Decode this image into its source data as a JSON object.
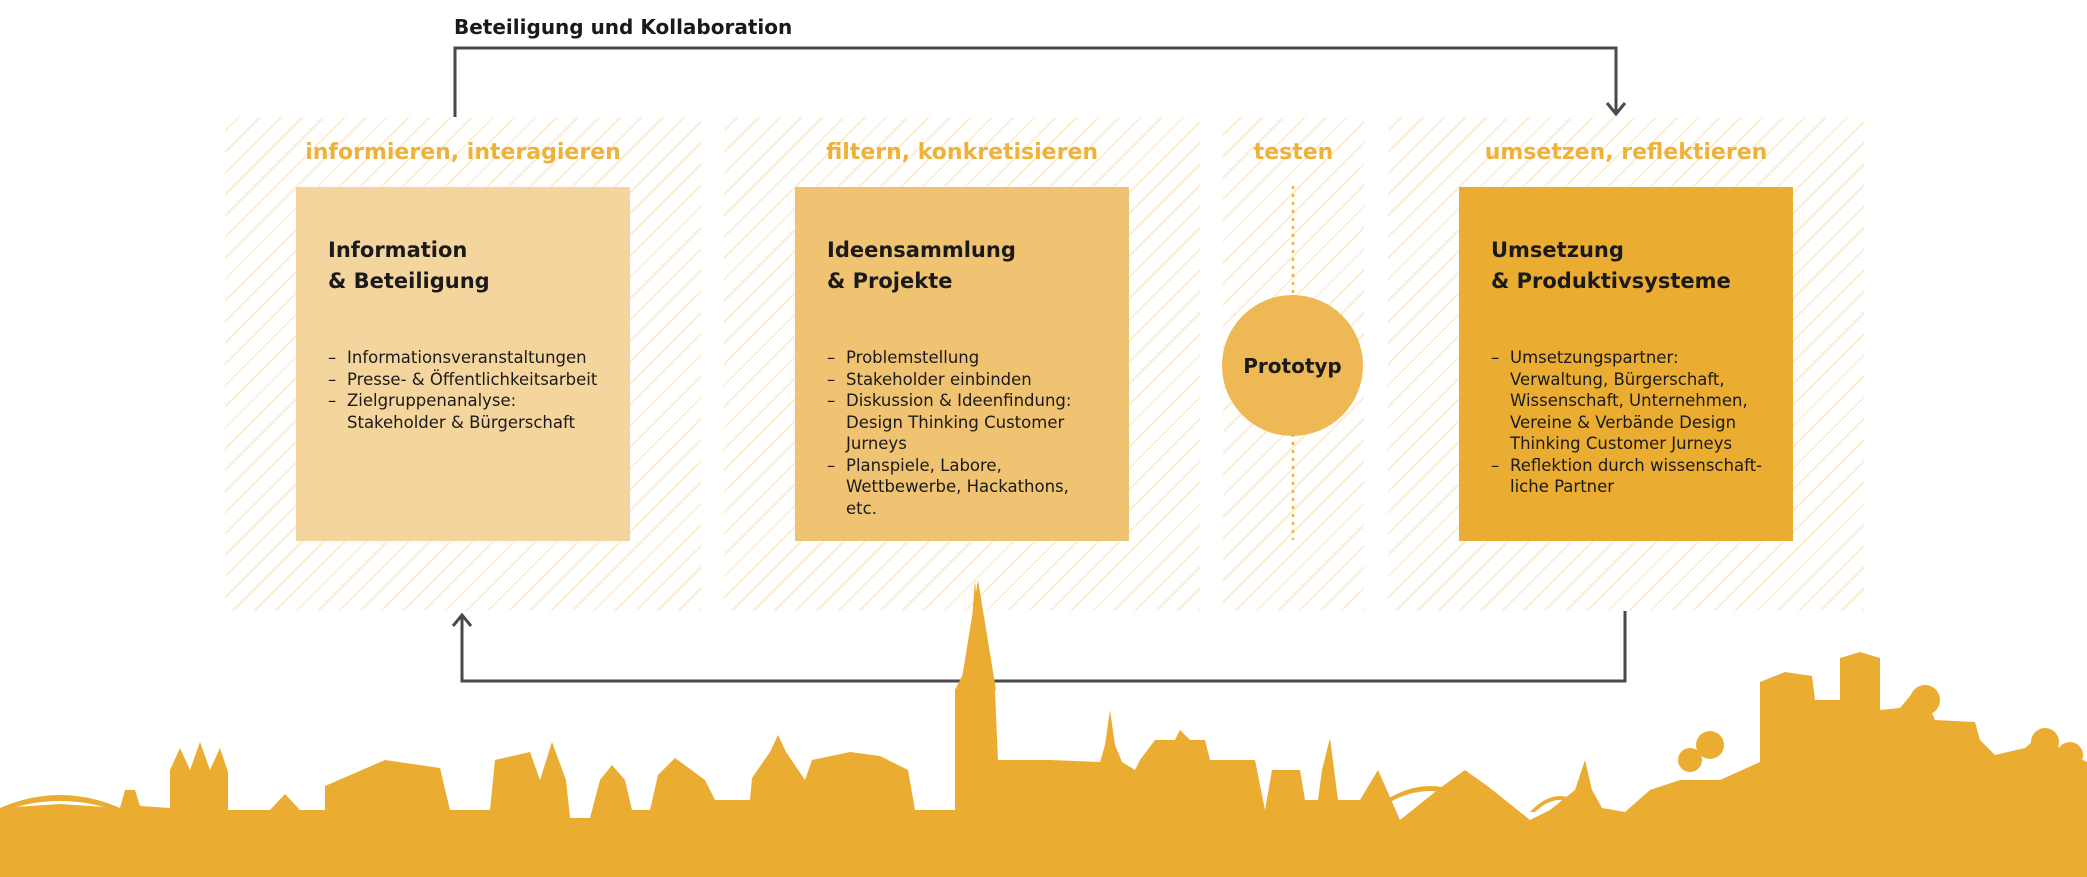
{
  "top_label": "Beteiligung und Kollaboration",
  "stages": [
    {
      "label": "informieren, interagieren",
      "title_line1": "Information",
      "title_line2": "& Beteiligung",
      "items": [
        "Informationsveranstaltungen",
        "Presse- & Öffentlichkeitsarbeit",
        "Zielgruppenanalyse: Stakeholder & Bürgerschaft"
      ]
    },
    {
      "label": "filtern, konkretisieren",
      "title_line1": "Ideensammlung",
      "title_line2": "& Projekte",
      "items": [
        "Problemstellung",
        "Stakeholder einbinden",
        "Diskussion & Ideenfindung: Design Thinking Customer Jurneys",
        "Planspiele, Labore, Wettbewerbe, Hackathons, etc."
      ]
    },
    {
      "label": "testen",
      "node": "Prototyp"
    },
    {
      "label": "umsetzen, reflektieren",
      "title_line1": "Umsetzung",
      "title_line2": "& Produktivsysteme",
      "items": [
        "Umsetzungspartner: Verwaltung, Bürgerschaft, Wissenschaft, Unternehmen, Vereine & Verbände Design Thinking Customer Jurneys",
        "Reflektion durch wissenschaft-liche Partner"
      ]
    }
  ],
  "colors": {
    "accent": "#edaf34",
    "light_card": "#f5d59e",
    "mid_card": "#f0c372",
    "dark_card": "#ebac32",
    "arrow": "#4a4a4a"
  }
}
